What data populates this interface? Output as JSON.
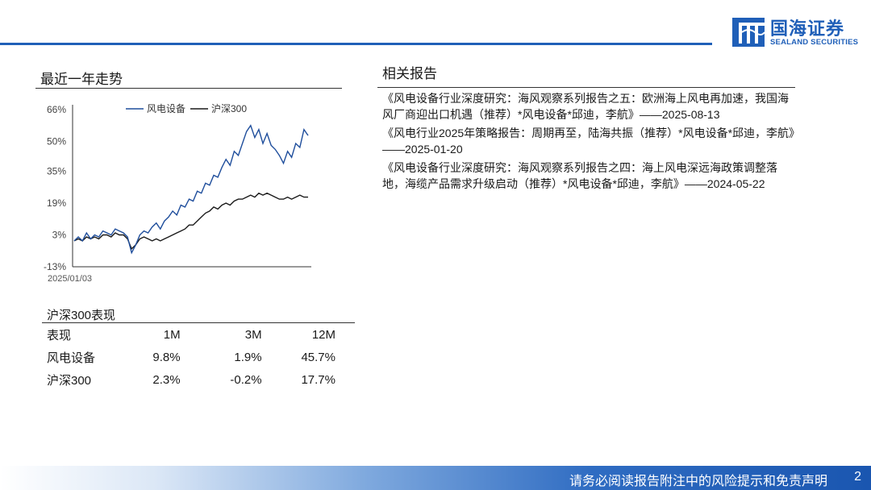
{
  "header": {
    "logo_cn": "国海证券",
    "logo_en": "SEALAND SECURITIES",
    "brand_color": "#1f5fb8"
  },
  "trend": {
    "title": "最近一年走势"
  },
  "chart_data": {
    "type": "line",
    "x_start_label": "2025/01/03",
    "y_ticks": [
      "66%",
      "50%",
      "35%",
      "19%",
      "3%",
      "-13%"
    ],
    "ylim": [
      -13,
      66
    ],
    "legend_placement": "top",
    "grid": false,
    "series": [
      {
        "name": "风电设备",
        "color": "#1f4e9c",
        "values": [
          0,
          2,
          0,
          4,
          1,
          3,
          2,
          5,
          4,
          3,
          6,
          5,
          4,
          2,
          -6,
          -2,
          3,
          5,
          4,
          7,
          9,
          6,
          10,
          12,
          15,
          13,
          18,
          17,
          21,
          20,
          25,
          24,
          29,
          28,
          33,
          32,
          37,
          41,
          38,
          45,
          43,
          49,
          55,
          58,
          52,
          56,
          49,
          54,
          48,
          46,
          43,
          39,
          45,
          42,
          49,
          47,
          56,
          53
        ]
      },
      {
        "name": "沪深300",
        "color": "#1a1a1a",
        "values": [
          0,
          1,
          0,
          2,
          1,
          2,
          1,
          3,
          3,
          2,
          4,
          3,
          3,
          1,
          -4,
          -2,
          1,
          2,
          1,
          0,
          1,
          0,
          1,
          2,
          3,
          4,
          5,
          6,
          8,
          8,
          10,
          12,
          14,
          15,
          17,
          16,
          18,
          19,
          18,
          20,
          21,
          21,
          22,
          23,
          22,
          24,
          23,
          24,
          23,
          22,
          21,
          21,
          22,
          21,
          22,
          23,
          22,
          22
        ]
      }
    ]
  },
  "performance": {
    "title": "沪深300表现",
    "header": [
      "表现",
      "1M",
      "3M",
      "12M"
    ],
    "rows": [
      [
        "风电设备",
        "9.8%",
        "1.9%",
        "45.7%"
      ],
      [
        "沪深300",
        "2.3%",
        "-0.2%",
        "17.7%"
      ]
    ]
  },
  "related": {
    "title": "相关报告",
    "items": [
      "《风电设备行业深度研究：海风观察系列报告之五：欧洲海上风电再加速，我国海风厂商迎出口机遇（推荐）*风电设备*邱迪，李航》——2025-08-13",
      "《风电行业2025年策略报告：周期再至，陆海共振（推荐）*风电设备*邱迪，李航》——2025-01-20",
      "《风电设备行业深度研究：海风观察系列报告之四：海上风电深远海政策调整落地，海缆产品需求升级启动（推荐）*风电设备*邱迪，李航》——2024-05-22"
    ]
  },
  "footer": {
    "disclaimer": "请务必阅读报告附注中的风险提示和免责声明",
    "page": "2"
  }
}
